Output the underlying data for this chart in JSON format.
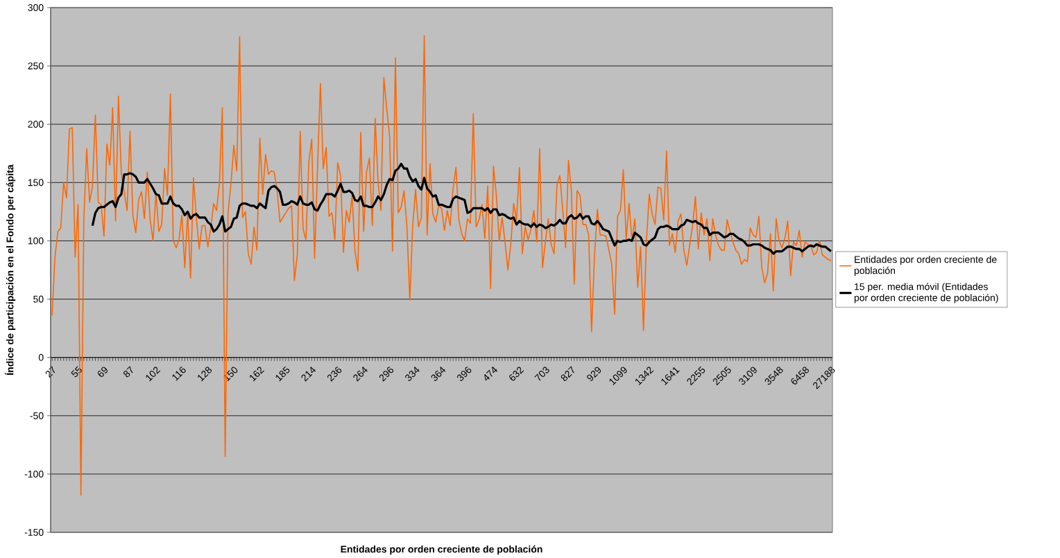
{
  "chart_data": {
    "type": "line",
    "xlabel": "Entidades por orden creciente de población",
    "ylabel": "Índice de participación en el Fondo per cápita",
    "categories": [
      "27",
      null,
      null,
      null,
      null,
      null,
      null,
      null,
      null,
      "55",
      null,
      null,
      null,
      null,
      null,
      null,
      null,
      null,
      "69",
      null,
      null,
      null,
      null,
      null,
      null,
      null,
      null,
      "87",
      null,
      null,
      null,
      null,
      null,
      null,
      null,
      null,
      "102",
      null,
      null,
      null,
      null,
      null,
      null,
      null,
      null,
      "116",
      null,
      null,
      null,
      null,
      null,
      null,
      null,
      null,
      "128",
      null,
      null,
      null,
      null,
      null,
      null,
      null,
      null,
      "150",
      null,
      null,
      null,
      null,
      null,
      null,
      null,
      null,
      "162",
      null,
      null,
      null,
      null,
      null,
      null,
      null,
      null,
      "185",
      null,
      null,
      null,
      null,
      null,
      null,
      null,
      null,
      "214",
      null,
      null,
      null,
      null,
      null,
      null,
      null,
      null,
      "236",
      null,
      null,
      null,
      null,
      null,
      null,
      null,
      null,
      "264",
      null,
      null,
      null,
      null,
      null,
      null,
      null,
      null,
      "296",
      null,
      null,
      null,
      null,
      null,
      null,
      null,
      null,
      "334",
      null,
      null,
      null,
      null,
      null,
      null,
      null,
      null,
      "364",
      null,
      null,
      null,
      null,
      null,
      null,
      null,
      null,
      "396",
      null,
      null,
      null,
      null,
      null,
      null,
      null,
      null,
      "474",
      null,
      null,
      null,
      null,
      null,
      null,
      null,
      null,
      "632",
      null,
      null,
      null,
      null,
      null,
      null,
      null,
      null,
      "703",
      null,
      null,
      null,
      null,
      null,
      null,
      null,
      null,
      "827",
      null,
      null,
      null,
      null,
      null,
      null,
      null,
      null,
      "929",
      null,
      null,
      null,
      null,
      null,
      null,
      null,
      null,
      "1099",
      null,
      null,
      null,
      null,
      null,
      null,
      null,
      null,
      "1342",
      null,
      null,
      null,
      null,
      null,
      null,
      null,
      null,
      "1641",
      null,
      null,
      null,
      null,
      null,
      null,
      null,
      null,
      "2255",
      null,
      null,
      null,
      null,
      null,
      null,
      null,
      null,
      "2505",
      null,
      null,
      null,
      null,
      null,
      null,
      null,
      null,
      "3109",
      null,
      null,
      null,
      null,
      null,
      null,
      null,
      null,
      "3548",
      null,
      null,
      null,
      null,
      null,
      null,
      null,
      null,
      "6458",
      null,
      null,
      null,
      null,
      null,
      null,
      null,
      null,
      "27188"
    ],
    "series": [
      {
        "name": "Entidades por orden creciente de población",
        "color": "#ff6600",
        "values": [
          36,
          86,
          108,
          111,
          150,
          137,
          196,
          197,
          86,
          131,
          -118,
          118,
          179,
          133,
          147,
          208,
          133,
          131,
          104,
          183,
          165,
          214,
          117,
          224,
          158,
          142,
          126,
          194,
          122,
          107,
          135,
          142,
          119,
          159,
          118,
          100,
          141,
          108,
          114,
          162,
          139,
          226,
          100,
          94,
          101,
          122,
          77,
          124,
          68,
          154,
          120,
          93,
          113,
          113,
          95,
          111,
          132,
          126,
          149,
          214,
          -85,
          124,
          149,
          182,
          160,
          275,
          120,
          125,
          89,
          80,
          112,
          92,
          188,
          140,
          174,
          157,
          160,
          159,
          143,
          116,
          120,
          124,
          128,
          130,
          66,
          88,
          194,
          110,
          101,
          168,
          187,
          85,
          162,
          235,
          162,
          180,
          121,
          124,
          101,
          167,
          156,
          90,
          126,
          116,
          139,
          91,
          74,
          193,
          108,
          159,
          171,
          113,
          205,
          150,
          126,
          240,
          213,
          190,
          91,
          257,
          124,
          129,
          143,
          112,
          49,
          113,
          144,
          112,
          120,
          276,
          105,
          166,
          123,
          116,
          130,
          128,
          109,
          126,
          113,
          145,
          163,
          118,
          106,
          100,
          119,
          115,
          209,
          112,
          118,
          131,
          102,
          147,
          59,
          164,
          139,
          100,
          120,
          99,
          75,
          97,
          132,
          118,
          163,
          89,
          112,
          101,
          110,
          126,
          99,
          179,
          77,
          99,
          119,
          97,
          89,
          148,
          156,
          127,
          94,
          169,
          143,
          63,
          143,
          139,
          114,
          114,
          105,
          22,
          86,
          127,
          105,
          105,
          104,
          92,
          80,
          37,
          121,
          126,
          161,
          101,
          132,
          100,
          119,
          60,
          95,
          23,
          99,
          140,
          123,
          114,
          146,
          145,
          118,
          177,
          96,
          106,
          90,
          117,
          123,
          92,
          79,
          96,
          113,
          138,
          93,
          124,
          105,
          119,
          83,
          119,
          105,
          96,
          92,
          92,
          118,
          108,
          99,
          92,
          89,
          80,
          84,
          82,
          111,
          105,
          103,
          121,
          77,
          64,
          72,
          106,
          57,
          119,
          100,
          94,
          102,
          117,
          70,
          99,
          96,
          109,
          86,
          99,
          97,
          96,
          88,
          90,
          100,
          88,
          86,
          84,
          83
        ]
      },
      {
        "name": "15 per. media móvil (Entidades por orden creciente de población)",
        "color": "#000000",
        "values": [
          null,
          null,
          null,
          null,
          null,
          null,
          null,
          null,
          null,
          null,
          null,
          null,
          null,
          null,
          113,
          124,
          128,
          129,
          129,
          131,
          133,
          134,
          129,
          137,
          140,
          157,
          157,
          158,
          157,
          155,
          150,
          150,
          150,
          153,
          149,
          145,
          140,
          139,
          132,
          132,
          132,
          138,
          132,
          130,
          130,
          127,
          122,
          125,
          119,
          122,
          123,
          120,
          120,
          120,
          116,
          114,
          108,
          110,
          114,
          121,
          108,
          110,
          112,
          119,
          120,
          130,
          132,
          132,
          131,
          130,
          130,
          128,
          132,
          130,
          128,
          143,
          146,
          147,
          145,
          142,
          131,
          131,
          132,
          134,
          133,
          131,
          138,
          132,
          131,
          131,
          133,
          127,
          126,
          131,
          135,
          140,
          140,
          140,
          138,
          143,
          149,
          142,
          142,
          143,
          141,
          135,
          134,
          138,
          130,
          130,
          129,
          129,
          133,
          138,
          135,
          140,
          148,
          153,
          152,
          160,
          162,
          166,
          162,
          162,
          155,
          151,
          153,
          147,
          144,
          154,
          145,
          142,
          138,
          139,
          131,
          131,
          130,
          129,
          129,
          136,
          138,
          137,
          136,
          135,
          124,
          125,
          128,
          128,
          128,
          128,
          126,
          128,
          124,
          127,
          127,
          122,
          123,
          122,
          120,
          119,
          120,
          114,
          117,
          115,
          114,
          114,
          112,
          115,
          112,
          114,
          113,
          111,
          112,
          114,
          113,
          115,
          118,
          115,
          115,
          120,
          122,
          119,
          120,
          123,
          119,
          121,
          121,
          115,
          114,
          117,
          114,
          110,
          109,
          108,
          102,
          96,
          100,
          99,
          100,
          100,
          101,
          100,
          107,
          105,
          103,
          97,
          96,
          99,
          101,
          103,
          110,
          112,
          112,
          113,
          112,
          110,
          110,
          110,
          113,
          114,
          118,
          117,
          116,
          117,
          115,
          114,
          111,
          111,
          105,
          107,
          107,
          107,
          105,
          103,
          104,
          106,
          106,
          104,
          102,
          101,
          99,
          96,
          96,
          97,
          97,
          97,
          96,
          94,
          93,
          92,
          89,
          91,
          91,
          91,
          93,
          95,
          95,
          94,
          93,
          93,
          91,
          93,
          95,
          96,
          95,
          97,
          96,
          95,
          95,
          93,
          91
        ]
      }
    ],
    "ylim": [
      -150,
      300
    ],
    "yticks": [
      -150,
      -100,
      -50,
      0,
      50,
      100,
      150,
      200,
      250,
      300
    ],
    "grid": "y",
    "legend": "right"
  }
}
